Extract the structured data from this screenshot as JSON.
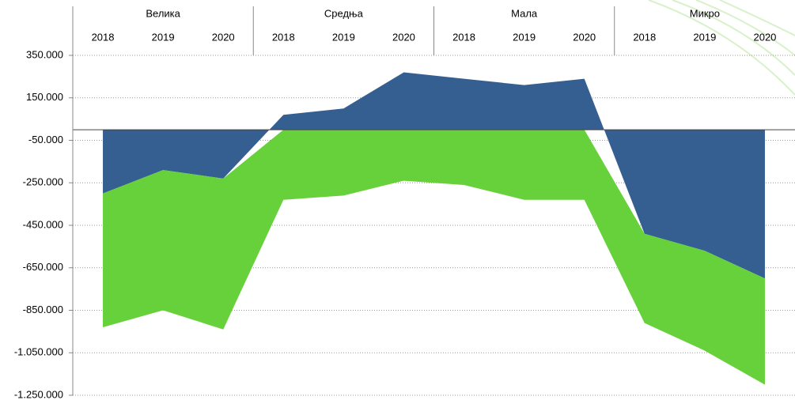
{
  "chart_data": {
    "type": "area",
    "groups": [
      "Велика",
      "Средња",
      "Мала",
      "Микро"
    ],
    "categories": [
      "2018",
      "2019",
      "2020",
      "2018",
      "2019",
      "2020",
      "2018",
      "2019",
      "2020",
      "2018",
      "2019",
      "2020"
    ],
    "series": [
      {
        "color": "#365f91",
        "values": [
          -300000,
          -190000,
          -230000,
          70000,
          100000,
          270000,
          240000,
          210000,
          240000,
          -490000,
          -570000,
          -700000
        ]
      },
      {
        "color": "#66d13a",
        "values": [
          -630000,
          -660000,
          -710000,
          -330000,
          -310000,
          -240000,
          -260000,
          -330000,
          -330000,
          -420000,
          -470000,
          -500000
        ]
      }
    ],
    "ylim": [
      -1250000,
      350000
    ],
    "yticks": [
      {
        "value": 350000,
        "label": "350.000"
      },
      {
        "value": 150000,
        "label": "150.000"
      },
      {
        "value": -50000,
        "label": "-50.000"
      },
      {
        "value": -250000,
        "label": "-250.000"
      },
      {
        "value": -450000,
        "label": "-450.000"
      },
      {
        "value": -650000,
        "label": "-650.000"
      },
      {
        "value": -850000,
        "label": "-850.000"
      },
      {
        "value": -1050000,
        "label": "-1.050.000"
      },
      {
        "value": -1250000,
        "label": "-1.250.000"
      }
    ],
    "grid": true
  }
}
